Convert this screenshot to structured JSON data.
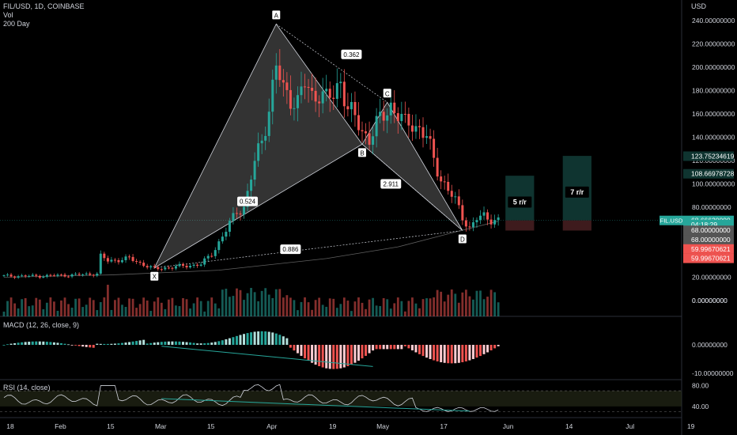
{
  "header": {
    "symbol_line": "FIL/USD, 1D, COINBASE",
    "vol_label": "Vol",
    "ma_label": "200 Day",
    "currency": "USD",
    "macd_label": "MACD (12, 26, close, 9)",
    "rsi_label": "RSI (14, close)"
  },
  "colors": {
    "up": "#26a69a",
    "down": "#ef5350",
    "pattern_fill": "#ffffff",
    "pattern_line": "#d1d4dc",
    "macd_up_light": "#b2dfdb",
    "macd_down_light": "#ffcdd2",
    "rsi_band": "#2a2e1a",
    "target_box": "#0f3430",
    "stop_box": "#3e1b1d",
    "axis_text": "#d1d4dc",
    "grid": "#141414"
  },
  "chart_data": [
    {
      "type": "line",
      "title": "FIL/USD, 1D, COINBASE",
      "subtype": "candlestick",
      "ylim": [
        0,
        240
      ],
      "y_ticks": [
        "240.00000000",
        "220.00000000",
        "200.00000000",
        "180.00000000",
        "160.00000000",
        "140.00000000",
        "120.00000000",
        "100.00000000",
        "80.00000000",
        "60.00000000",
        "40.00000000",
        "20.00000000",
        "0.00000000"
      ],
      "y_tick_values": [
        240,
        220,
        200,
        180,
        160,
        140,
        120,
        100,
        80,
        60,
        40,
        20,
        0
      ],
      "x_ticks": [
        "18",
        "Feb",
        "15",
        "Mar",
        "15",
        "Apr",
        "19",
        "May",
        "17",
        "Jun",
        "14",
        "Jul",
        "19"
      ],
      "x_tick_days": [
        0,
        14,
        28,
        42,
        56,
        73,
        90,
        104,
        121,
        139,
        156,
        173,
        190
      ],
      "close_series": [
        {
          "day": 0,
          "price": 21
        },
        {
          "day": 10,
          "price": 21
        },
        {
          "day": 20,
          "price": 22
        },
        {
          "day": 26,
          "price": 23
        },
        {
          "day": 27,
          "price": 38
        },
        {
          "day": 29,
          "price": 34
        },
        {
          "day": 35,
          "price": 36
        },
        {
          "day": 42,
          "price": 27
        },
        {
          "day": 48,
          "price": 29
        },
        {
          "day": 55,
          "price": 31
        },
        {
          "day": 58,
          "price": 40
        },
        {
          "day": 62,
          "price": 60
        },
        {
          "day": 65,
          "price": 77
        },
        {
          "day": 67,
          "price": 80
        },
        {
          "day": 68,
          "price": 92
        },
        {
          "day": 70,
          "price": 118
        },
        {
          "day": 72,
          "price": 138
        },
        {
          "day": 74,
          "price": 165
        },
        {
          "day": 76,
          "price": 200
        },
        {
          "day": 78,
          "price": 180
        },
        {
          "day": 80,
          "price": 175
        },
        {
          "day": 82,
          "price": 170
        },
        {
          "day": 84,
          "price": 185
        },
        {
          "day": 86,
          "price": 175
        },
        {
          "day": 88,
          "price": 180
        },
        {
          "day": 90,
          "price": 172
        },
        {
          "day": 92,
          "price": 175
        },
        {
          "day": 94,
          "price": 190
        },
        {
          "day": 96,
          "price": 165
        },
        {
          "day": 98,
          "price": 155
        },
        {
          "day": 100,
          "price": 145
        },
        {
          "day": 102,
          "price": 140
        },
        {
          "day": 104,
          "price": 150
        },
        {
          "day": 106,
          "price": 158
        },
        {
          "day": 108,
          "price": 168
        },
        {
          "day": 110,
          "price": 160
        },
        {
          "day": 112,
          "price": 150
        },
        {
          "day": 114,
          "price": 152
        },
        {
          "day": 116,
          "price": 148
        },
        {
          "day": 118,
          "price": 140
        },
        {
          "day": 120,
          "price": 120
        },
        {
          "day": 122,
          "price": 105
        },
        {
          "day": 124,
          "price": 95
        },
        {
          "day": 126,
          "price": 85
        },
        {
          "day": 128,
          "price": 72
        },
        {
          "day": 130,
          "price": 62
        },
        {
          "day": 132,
          "price": 70
        },
        {
          "day": 134,
          "price": 72
        },
        {
          "day": 136,
          "price": 70
        },
        {
          "day": 138,
          "price": 68.67
        }
      ],
      "ma_200": [
        {
          "day": 0,
          "price": 20
        },
        {
          "day": 30,
          "price": 22
        },
        {
          "day": 60,
          "price": 26
        },
        {
          "day": 90,
          "price": 36
        },
        {
          "day": 110,
          "price": 46
        },
        {
          "day": 125,
          "price": 58
        },
        {
          "day": 138,
          "price": 68
        }
      ],
      "harmonic_pattern": {
        "points": [
          {
            "label": "X",
            "day": 42,
            "price": 28
          },
          {
            "label": "A",
            "day": 76,
            "price": 237
          },
          {
            "label": "B",
            "day": 100,
            "price": 134
          },
          {
            "label": "C",
            "day": 107,
            "price": 170
          },
          {
            "label": "D",
            "day": 128,
            "price": 60
          }
        ],
        "ratios": [
          {
            "label": "0.362",
            "day": 97,
            "price": 211
          },
          {
            "label": "0.524",
            "day": 68,
            "price": 85
          },
          {
            "label": "2.911",
            "day": 108,
            "price": 100
          },
          {
            "label": "0.886",
            "day": 80,
            "price": 44
          }
        ]
      },
      "targets": [
        {
          "label": "5 r/r",
          "day_start": 140,
          "day_end": 148,
          "price_top": 107,
          "price_bottom": 68.67
        },
        {
          "label": "7 r/r",
          "day_start": 156,
          "day_end": 164,
          "price_top": 124,
          "price_bottom": 68.67
        }
      ],
      "stop_zone": {
        "day_start": 140,
        "day_end": 164,
        "price_top": 68.67,
        "price_bottom": 60
      },
      "price_labels": [
        {
          "text": "123.75234619",
          "price": 123.75,
          "color": "#0f3430",
          "bg": "#0f3430"
        },
        {
          "text": "108.66978728",
          "price": 108.67,
          "color": "#0f3430",
          "bg": "#0f3430"
        },
        {
          "text": "68.66620000",
          "price": 68.67,
          "bg": "#26a69a"
        },
        {
          "text": "04:18:29",
          "price": 65.2,
          "bg": "#26a69a"
        },
        {
          "text": "68.00000000",
          "price": 60.2,
          "bg": "#555555"
        },
        {
          "text": "68.00000000",
          "price": 52.2,
          "bg": "#555555"
        },
        {
          "text": "59.99670621",
          "price": 44.2,
          "bg": "#ef5350"
        },
        {
          "text": "59.99670621",
          "price": 36.2,
          "bg": "#ef5350"
        }
      ],
      "symbol_tag": "FIL.USD"
    },
    {
      "type": "bar",
      "title": "Vol",
      "tick": "0.00000000"
    },
    {
      "type": "bar",
      "title": "MACD (12, 26, close, 9)",
      "y_ticks": [
        "0.00000000",
        "-10.00000000"
      ],
      "y_tick_values": [
        0,
        -10
      ],
      "ylim": [
        -12,
        8
      ]
    },
    {
      "type": "line",
      "title": "RSI (14, close)",
      "y_ticks": [
        "80.00",
        "40.00"
      ],
      "y_tick_values": [
        80,
        40
      ],
      "ylim": [
        20,
        90
      ],
      "band": [
        40,
        70
      ]
    }
  ]
}
